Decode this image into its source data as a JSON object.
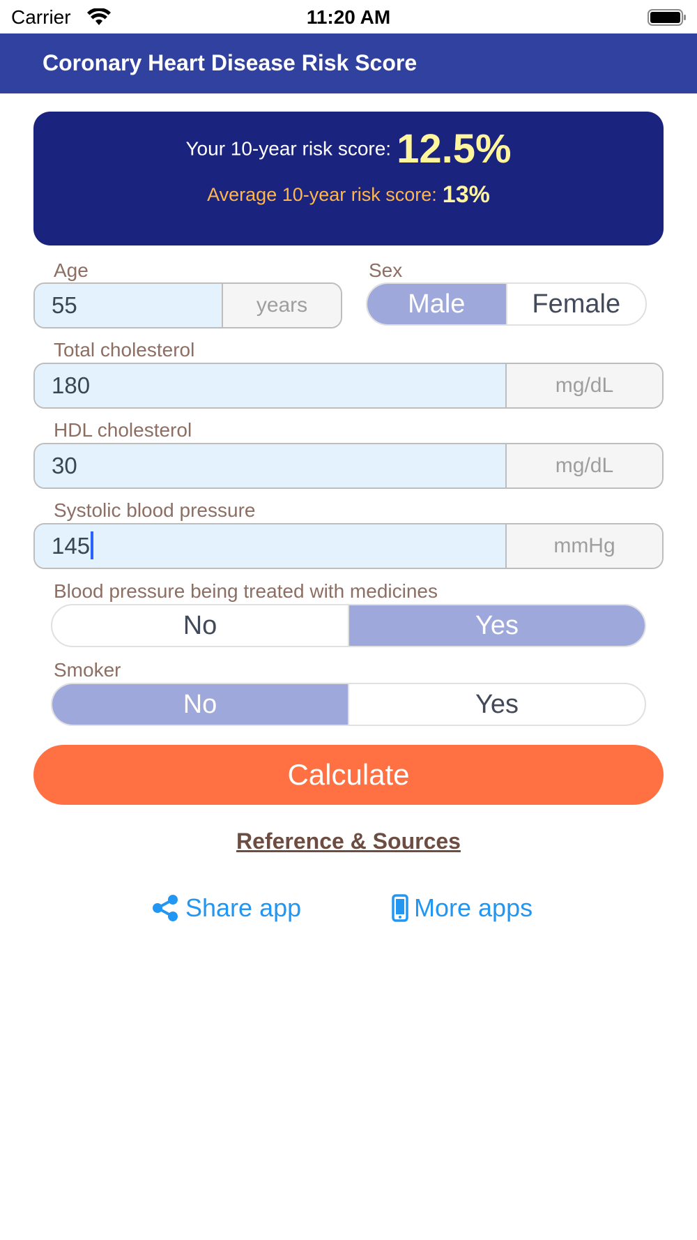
{
  "status_bar": {
    "carrier": "Carrier",
    "time": "11:20 AM"
  },
  "nav": {
    "title": "Coronary Heart Disease Risk Score"
  },
  "result": {
    "your_label": "Your 10-year risk score:",
    "your_value": "12.5%",
    "average_label": "Average 10-year risk score:",
    "average_value": "13%"
  },
  "form": {
    "age": {
      "label": "Age",
      "value": "55",
      "unit": "years"
    },
    "sex": {
      "label": "Sex",
      "options": [
        "Male",
        "Female"
      ],
      "selected": "Male"
    },
    "total_cholesterol": {
      "label": "Total cholesterol",
      "value": "180",
      "unit": "mg/dL"
    },
    "hdl_cholesterol": {
      "label": "HDL cholesterol",
      "value": "30",
      "unit": "mg/dL"
    },
    "systolic_bp": {
      "label": "Systolic blood pressure",
      "value": "145",
      "unit": "mmHg"
    },
    "bp_treated": {
      "label": "Blood pressure being treated with medicines",
      "options": [
        "No",
        "Yes"
      ],
      "selected": "Yes"
    },
    "smoker": {
      "label": "Smoker",
      "options": [
        "No",
        "Yes"
      ],
      "selected": "No"
    }
  },
  "actions": {
    "calculate_label": "Calculate",
    "reference_label": "Reference & Sources",
    "share_label": "Share app",
    "more_apps_label": "More apps"
  },
  "colors": {
    "nav_bar": "#3141a0",
    "result_card": "#1a237e",
    "result_value": "#fff59d",
    "average_label": "#ffb74d",
    "field_label": "#8d6e63",
    "input_bg": "#e3f2fd",
    "segment_active": "#9fa8da",
    "calculate_button": "#ff7043",
    "link": "#2196f3",
    "reference_link": "#6d4c41"
  },
  "icons": {
    "wifi": "wifi-icon",
    "battery": "battery-icon",
    "share": "share-icon",
    "more_apps": "phone-icon"
  }
}
